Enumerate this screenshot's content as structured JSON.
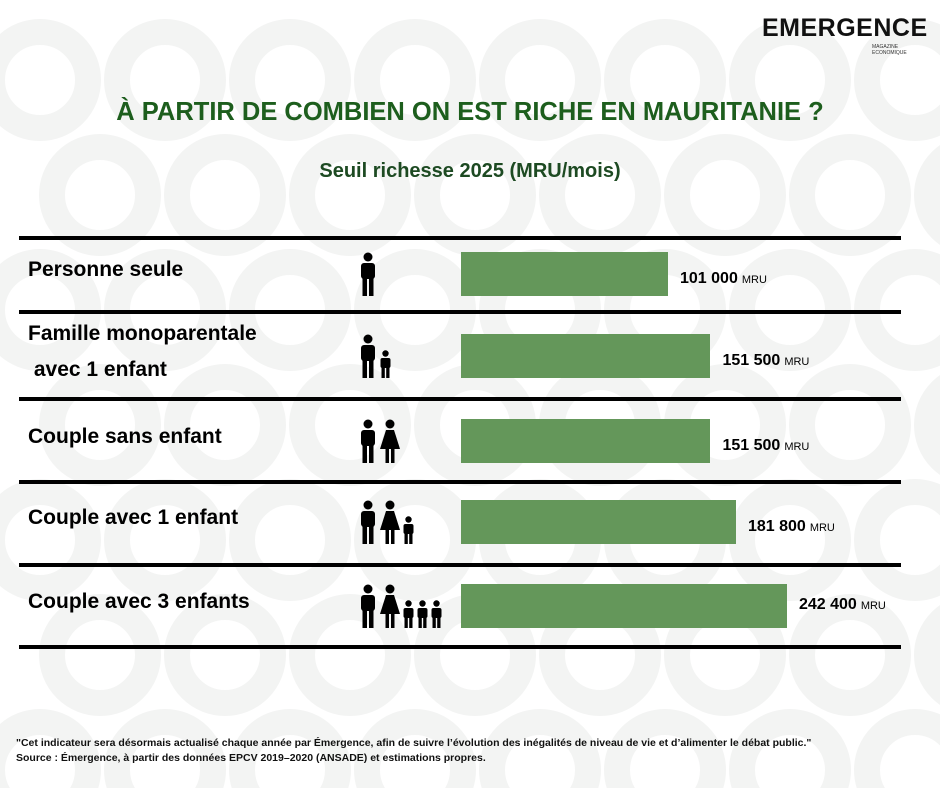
{
  "logo": {
    "text": "EMERGENCE",
    "tagline": "MAGAZINE ECONOMIQUE"
  },
  "title": "À PARTIR DE COMBIEN ON EST RICHE EN MAURITANIE ?",
  "subtitle": "Seuil richesse 2025 (MRU/mois)",
  "colors": {
    "bar": "#64975a",
    "title": "#1d5e1d"
  },
  "chart_data": {
    "type": "bar",
    "orientation": "horizontal",
    "title": "Seuil richesse 2025 (MRU/mois)",
    "unit": "MRU",
    "categories": [
      "Personne seule",
      "Famille monoparentale avec 1 enfant",
      "Couple sans enfant",
      "Couple avec 1 enfant",
      "Couple avec 3 enfants"
    ],
    "values": [
      101000,
      151500,
      151500,
      181800,
      242400
    ],
    "rows": [
      {
        "label_lines": [
          "Personne seule"
        ],
        "value": 101000,
        "value_text": "101 000",
        "unit": "MRU",
        "figures": [
          "man"
        ]
      },
      {
        "label_lines": [
          "Famille monoparentale",
          " avec 1 enfant"
        ],
        "value": 151500,
        "value_text": "151 500",
        "unit": "MRU",
        "figures": [
          "man",
          "child"
        ]
      },
      {
        "label_lines": [
          "Couple sans enfant"
        ],
        "value": 151500,
        "value_text": "151 500",
        "unit": "MRU",
        "figures": [
          "man",
          "woman"
        ]
      },
      {
        "label_lines": [
          "Couple avec 1 enfant"
        ],
        "value": 181800,
        "value_text": "181 800",
        "unit": "MRU",
        "figures": [
          "man",
          "woman",
          "child"
        ]
      },
      {
        "label_lines": [
          "Couple avec 3 enfants"
        ],
        "value": 242400,
        "value_text": "242 400",
        "unit": "MRU",
        "figures": [
          "man",
          "woman",
          "child",
          "child",
          "child"
        ]
      }
    ]
  },
  "footer": {
    "quote": "\"Cet indicateur sera désormais actualisé chaque année par Émergence, afin de suivre l’évolution des inégalités de niveau de vie et d’alimenter le débat public.\"",
    "source": "Source : Émergence, à partir des données EPCV 2019–2020 (ANSADE) et estimations propres."
  }
}
